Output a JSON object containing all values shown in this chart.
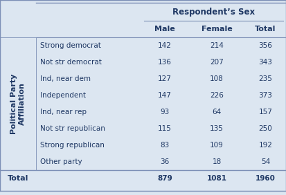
{
  "title": "Respondent’s Sex",
  "col_headers": [
    "Male",
    "Female",
    "Total"
  ],
  "row_headers": [
    "Strong democrat",
    "Not str democrat",
    "Ind, near dem",
    "Independent",
    "Ind, near rep",
    "Not str republican",
    "Strong republican",
    "Other party"
  ],
  "data": [
    [
      142,
      214,
      356
    ],
    [
      136,
      207,
      343
    ],
    [
      127,
      108,
      235
    ],
    [
      147,
      226,
      373
    ],
    [
      93,
      64,
      157
    ],
    [
      115,
      135,
      250
    ],
    [
      83,
      109,
      192
    ],
    [
      36,
      18,
      54
    ]
  ],
  "total_row": [
    879,
    1081,
    1960
  ],
  "side_label": "Political Party\nAffiliation",
  "total_label": "Total",
  "bg_color": "#dce6f1",
  "text_color": "#1f3864",
  "line_color": "#7b8eb5"
}
